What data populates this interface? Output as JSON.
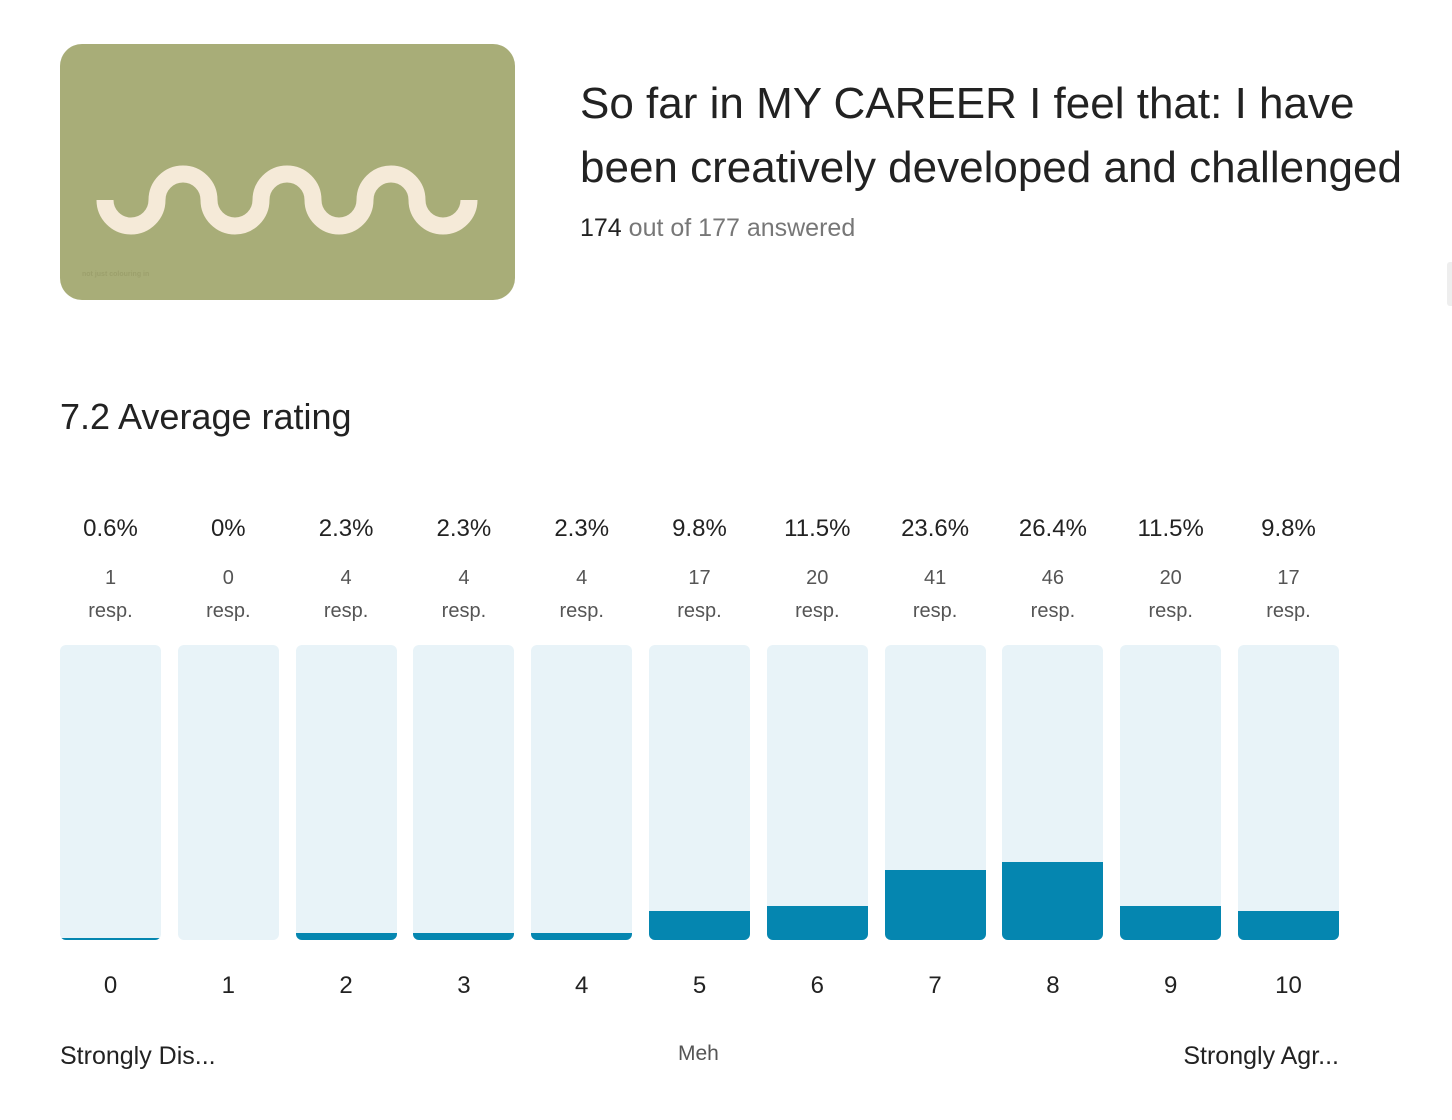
{
  "header": {
    "title": "So far in MY CAREER I feel that: I have been creatively developed and challenged",
    "answered_count": "174",
    "answered_rest": "out of 177 answered",
    "logo_text": "not just colouring in"
  },
  "summary": {
    "average_label": "7.2 Average rating"
  },
  "chart_data": {
    "type": "bar",
    "categories": [
      "0",
      "1",
      "2",
      "3",
      "4",
      "5",
      "6",
      "7",
      "8",
      "9",
      "10"
    ],
    "values": [
      0.6,
      0,
      2.3,
      2.3,
      2.3,
      9.8,
      11.5,
      23.6,
      26.4,
      11.5,
      9.8
    ],
    "pct_labels": [
      "0.6%",
      "0%",
      "2.3%",
      "2.3%",
      "2.3%",
      "9.8%",
      "11.5%",
      "23.6%",
      "26.4%",
      "11.5%",
      "9.8%"
    ],
    "counts": [
      "1",
      "0",
      "4",
      "4",
      "4",
      "17",
      "20",
      "41",
      "46",
      "20",
      "17"
    ],
    "count_unit": "resp.",
    "ylim": [
      0,
      100
    ],
    "scale_labels": {
      "low": "Strongly Dis...",
      "mid": "Meh",
      "high": "Strongly Agr..."
    },
    "colors": {
      "fill": "#0586b0",
      "track": "#e8f3f8"
    }
  }
}
